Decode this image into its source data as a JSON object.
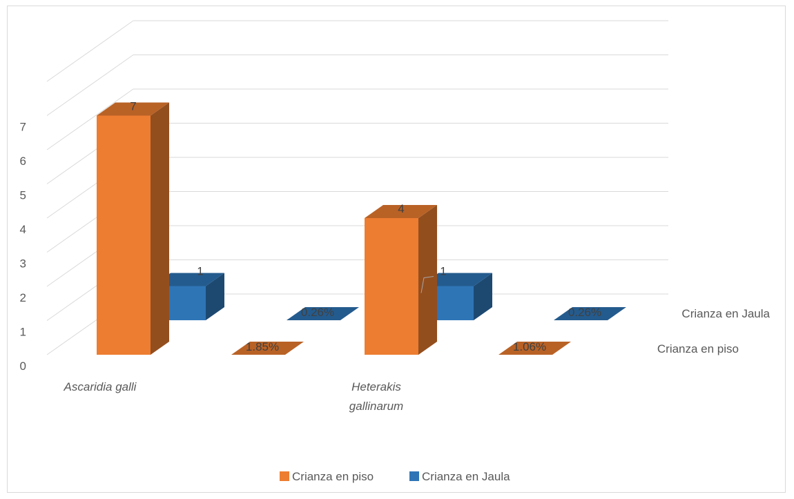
{
  "chart_data": {
    "type": "bar",
    "subtype": "3d-clustered-column",
    "title": "",
    "xlabel": "",
    "ylabel": "",
    "ylim": [
      0,
      7
    ],
    "y_ticks": [
      "0",
      "1",
      "2",
      "3",
      "4",
      "5",
      "6",
      "7"
    ],
    "grid": true,
    "categories": [
      "Ascaridia galli",
      "",
      "Heterakis gallinarum",
      ""
    ],
    "series": [
      {
        "name": "Crianza en piso",
        "color": "#ED7D31",
        "values": [
          7,
          0,
          4,
          0
        ],
        "labels": [
          "7",
          "1.85%",
          "4",
          "1.06%"
        ]
      },
      {
        "name": "Crianza en Jaula",
        "color": "#2E75B6",
        "values": [
          1,
          0,
          1,
          0
        ],
        "labels": [
          "1",
          "0.26%",
          "1",
          "0.26%"
        ]
      }
    ],
    "legend_position": "bottom"
  }
}
